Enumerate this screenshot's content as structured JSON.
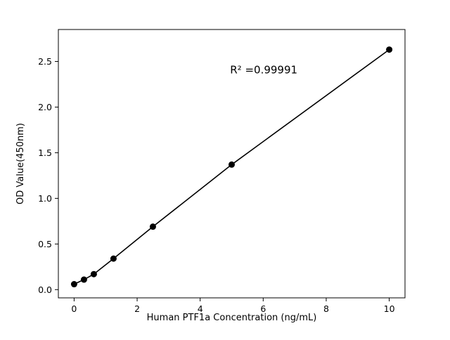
{
  "chart_data": {
    "type": "scatter",
    "title": "",
    "xlabel": "Human PTF1a Concentration (ng/mL)",
    "ylabel": "OD Value(450nm)",
    "x": [
      0,
      0.313,
      0.625,
      1.25,
      2.5,
      5,
      10
    ],
    "y": [
      0.06,
      0.11,
      0.17,
      0.34,
      0.69,
      1.37,
      2.63
    ],
    "xlim": [
      -0.5,
      10.5
    ],
    "ylim": [
      -0.09,
      2.85
    ],
    "xticks": [
      0,
      2,
      4,
      6,
      8,
      10
    ],
    "yticks": [
      0.0,
      0.5,
      1.0,
      1.5,
      2.0,
      2.5
    ],
    "grid": false,
    "legend": null,
    "line_color": "#000000",
    "marker_color": "#000000",
    "background_color": "#ffffff",
    "annotation": {
      "text": "R² =0.99991",
      "x": 4.95,
      "y": 2.37
    }
  }
}
